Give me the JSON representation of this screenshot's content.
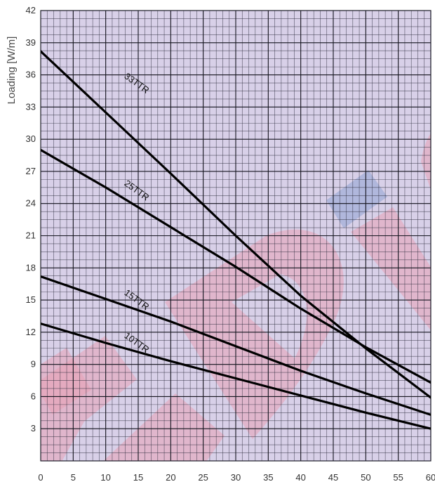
{
  "chart_data": {
    "type": "line",
    "ylabel": "Loading [W/m]",
    "xlabel": "",
    "xlim": [
      0,
      60
    ],
    "ylim": [
      0,
      42
    ],
    "x_ticks": [
      0,
      5,
      10,
      15,
      20,
      25,
      30,
      35,
      40,
      45,
      50,
      55,
      60
    ],
    "y_ticks": [
      3,
      6,
      9,
      12,
      15,
      18,
      21,
      24,
      27,
      30,
      33,
      36,
      39,
      42
    ],
    "grid": true,
    "legend": "none",
    "colors": {
      "plot_background": "#d8d0e8",
      "grid": "#2a2a3a",
      "series": "#000000",
      "watermark_red": "#e8a0b4",
      "watermark_blue": "#8fa2d2"
    },
    "series": [
      {
        "name": "33TTR",
        "x": [
          0,
          10,
          20,
          30,
          40,
          50,
          60
        ],
        "y": [
          38.2,
          32.5,
          26.8,
          21.0,
          15.4,
          10.5,
          5.9
        ]
      },
      {
        "name": "25TTR",
        "x": [
          0,
          10,
          20,
          30,
          40,
          50,
          60
        ],
        "y": [
          29.0,
          25.5,
          21.8,
          18.1,
          14.2,
          10.6,
          7.3
        ]
      },
      {
        "name": "15TTR",
        "x": [
          0,
          10,
          20,
          30,
          40,
          50,
          60
        ],
        "y": [
          17.2,
          15.1,
          13.0,
          10.7,
          8.4,
          6.3,
          4.3
        ]
      },
      {
        "name": "10TTR",
        "x": [
          0,
          10,
          20,
          30,
          40,
          50,
          60
        ],
        "y": [
          12.8,
          11.0,
          9.3,
          7.7,
          6.1,
          4.5,
          3.0
        ]
      }
    ],
    "curve_labels": [
      {
        "text": "33TTR",
        "x": 14.5,
        "y": 35.0
      },
      {
        "text": "25TTR",
        "x": 14.5,
        "y": 25.0
      },
      {
        "text": "15TTR",
        "x": 14.5,
        "y": 14.8
      },
      {
        "text": "10TTR",
        "x": 14.5,
        "y": 10.8
      }
    ]
  }
}
